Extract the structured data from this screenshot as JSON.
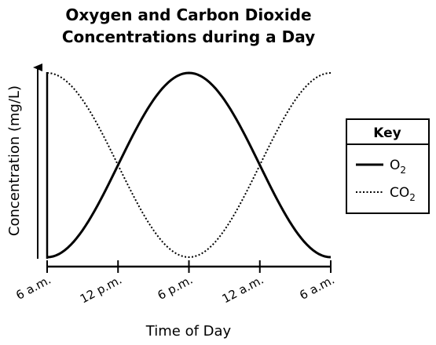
{
  "chart_data": {
    "type": "line",
    "title_line1": "Oxygen and Carbon Dioxide",
    "title_line2": "Concentrations during a Day",
    "xlabel": "Time of Day",
    "ylabel": "Concentration (mg/L)",
    "x_tick_labels": [
      "6 a.m.",
      "12 p.m.",
      "6 p.m.",
      "12 a.m.",
      "6 a.m."
    ],
    "x_hours_from_start": [
      0,
      6,
      12,
      18,
      24
    ],
    "y_range": [
      0,
      1
    ],
    "y_units_note": "relative (no numeric ticks shown)",
    "series": [
      {
        "key": "o2",
        "name": "O2",
        "style": "solid",
        "color": "#000000",
        "x": [
          0,
          3,
          6,
          9,
          12,
          15,
          18,
          21,
          24
        ],
        "values": [
          0.0,
          0.146,
          0.5,
          0.854,
          1.0,
          0.854,
          0.5,
          0.146,
          0.0
        ]
      },
      {
        "key": "co2",
        "name": "CO2",
        "style": "dotted",
        "color": "#000000",
        "x": [
          0,
          3,
          6,
          9,
          12,
          15,
          18,
          21,
          24
        ],
        "values": [
          1.0,
          0.854,
          0.5,
          0.146,
          0.0,
          0.146,
          0.5,
          0.854,
          1.0
        ]
      }
    ],
    "legend": {
      "title": "Key",
      "position": "right",
      "entries": [
        {
          "series": "o2",
          "main": "O",
          "sub": "2"
        },
        {
          "series": "co2",
          "main": "CO",
          "sub": "2"
        }
      ]
    },
    "grid": false
  }
}
